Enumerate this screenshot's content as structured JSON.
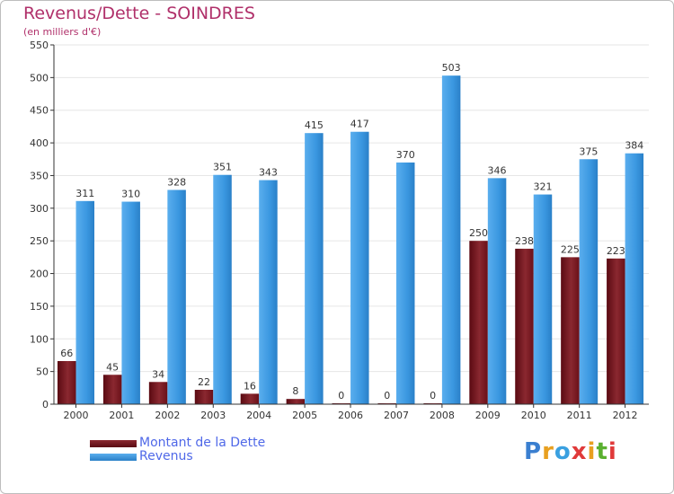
{
  "header": {
    "title": "Revenus/Dette - SOINDRES",
    "subtitle": "(en milliers d'€)"
  },
  "brand": {
    "logo_text": "Proxiti"
  },
  "colors": {
    "debt": "#7a1a22",
    "revenue": "#3a97e0",
    "grid": "#e6e6e6",
    "axis": "#333333"
  },
  "chart_data": {
    "type": "bar",
    "title": "Revenus/Dette - SOINDRES",
    "subtitle": "(en milliers d'€)",
    "categories": [
      "2000",
      "2001",
      "2002",
      "2003",
      "2004",
      "2005",
      "2006",
      "2007",
      "2008",
      "2009",
      "2010",
      "2011",
      "2012"
    ],
    "series": [
      {
        "name": "Montant de la Dette",
        "values": [
          66,
          45,
          34,
          22,
          16,
          8,
          0,
          0,
          0,
          250,
          238,
          225,
          223
        ]
      },
      {
        "name": "Revenus",
        "values": [
          311,
          310,
          328,
          351,
          343,
          415,
          417,
          370,
          503,
          346,
          321,
          375,
          384
        ]
      }
    ],
    "ylim": [
      0,
      550
    ],
    "yticks": [
      0,
      50,
      100,
      150,
      200,
      250,
      300,
      350,
      400,
      450,
      500,
      550
    ],
    "grid": true,
    "legend_position": "bottom-left"
  }
}
